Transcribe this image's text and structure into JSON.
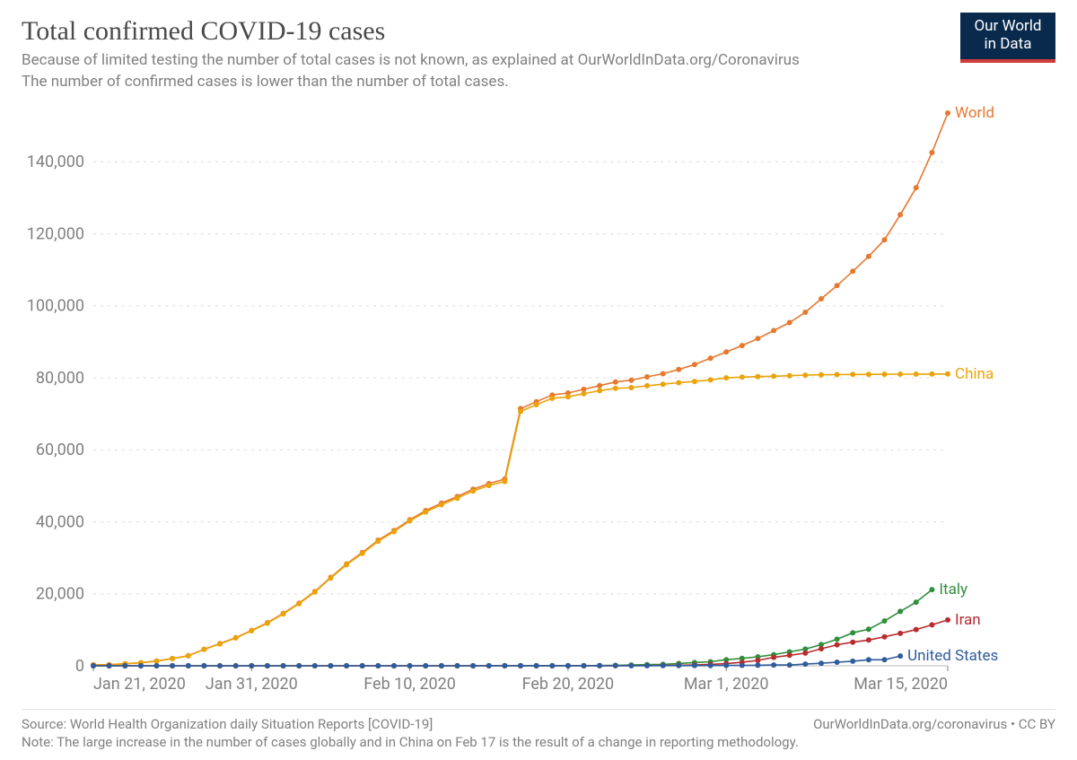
{
  "logo": {
    "line1": "Our World",
    "line2": "in Data"
  },
  "header": {
    "title": "Total confirmed COVID-19 cases",
    "subtitle_line1": "Because of limited testing the number of total cases is not known, as explained at OurWorldInData.org/Coronavirus",
    "subtitle_line2": " The number of confirmed cases is lower than the number of total cases."
  },
  "footer": {
    "source": "Source: World Health Organization daily Situation Reports [COVID-19]",
    "attrib": "OurWorldInData.org/coronavirus • CC BY",
    "note": "Note: The large increase in the number of cases globally and in China on Feb 17 is the result of a change in reporting methodology."
  },
  "chart": {
    "type": "line",
    "background_color": "#ffffff",
    "grid_color": "#dcdcdc",
    "axis_text_color": "#808080",
    "axis_fontsize": 18,
    "line_width": 1.6,
    "marker_radius": 3,
    "marker_style": "circle",
    "xlim": [
      0,
      54
    ],
    "ylim": [
      0,
      155000
    ],
    "y_ticks": [
      {
        "v": 0,
        "label": "0"
      },
      {
        "v": 20000,
        "label": "20,000"
      },
      {
        "v": 40000,
        "label": "40,000"
      },
      {
        "v": 60000,
        "label": "60,000"
      },
      {
        "v": 80000,
        "label": "80,000"
      },
      {
        "v": 100000,
        "label": "100,000"
      },
      {
        "v": 120000,
        "label": "120,000"
      },
      {
        "v": 140000,
        "label": "140,000"
      }
    ],
    "x_ticks": [
      {
        "v": 0,
        "label": "Jan 21, 2020"
      },
      {
        "v": 10,
        "label": "Jan 31, 2020"
      },
      {
        "v": 20,
        "label": "Feb 10, 2020"
      },
      {
        "v": 30,
        "label": "Feb 20, 2020"
      },
      {
        "v": 40,
        "label": "Mar 1, 2020"
      },
      {
        "v": 54,
        "label": "Mar 15, 2020"
      }
    ],
    "end_label_fontsize": 17,
    "series": [
      {
        "name": "World",
        "color": "#e6782f",
        "values": [
          282,
          314,
          581,
          846,
          1320,
          2014,
          2798,
          4596,
          6166,
          7818,
          9826,
          11953,
          14557,
          17391,
          20630,
          24554,
          28276,
          31481,
          34886,
          37558,
          40554,
          43103,
          45171,
          46997,
          49053,
          50580,
          51857,
          71429,
          73332,
          75204,
          75748,
          76769,
          77794,
          78811,
          79331,
          80239,
          81109,
          82294,
          83652,
          85403,
          87137,
          88948,
          90870,
          93091,
          95324,
          98192,
          101927,
          105586,
          109578,
          113702,
          118319,
          125260,
          132758,
          142534,
          153517
        ]
      },
      {
        "name": "China",
        "color": "#eaa30a",
        "values": [
          278,
          309,
          571,
          830,
          1297,
          1985,
          2761,
          4537,
          6087,
          7736,
          9720,
          11821,
          14411,
          17238,
          20471,
          24363,
          28060,
          31211,
          34598,
          37251,
          40235,
          42708,
          44730,
          46550,
          48548,
          50054,
          51174,
          70635,
          72528,
          74280,
          74675,
          75569,
          76392,
          77042,
          77262,
          77780,
          78191,
          78630,
          78961,
          79394,
          79968,
          80174,
          80304,
          80422,
          80565,
          80711,
          80813,
          80860,
          80904,
          80924,
          80955,
          80981,
          80991,
          81021,
          81048
        ]
      },
      {
        "name": "Italy",
        "color": "#2f8f3b",
        "values": [
          0,
          0,
          0,
          0,
          0,
          0,
          0,
          0,
          0,
          0,
          2,
          2,
          2,
          2,
          2,
          2,
          2,
          3,
          3,
          3,
          3,
          3,
          3,
          3,
          3,
          3,
          3,
          3,
          3,
          3,
          3,
          9,
          76,
          124,
          229,
          322,
          400,
          650,
          888,
          1128,
          1689,
          2036,
          2502,
          3089,
          3858,
          4636,
          5883,
          7375,
          9172,
          10149,
          12462,
          15113,
          17660,
          21157
        ]
      },
      {
        "name": "Iran",
        "color": "#b82c2f",
        "values": [
          0,
          0,
          0,
          0,
          0,
          0,
          0,
          0,
          0,
          0,
          0,
          0,
          0,
          0,
          0,
          0,
          0,
          0,
          0,
          0,
          0,
          0,
          0,
          0,
          0,
          0,
          0,
          0,
          0,
          0,
          2,
          5,
          18,
          28,
          43,
          61,
          95,
          139,
          245,
          388,
          593,
          978,
          1501,
          2336,
          2922,
          3513,
          4747,
          5823,
          6566,
          7161,
          8042,
          9000,
          10075,
          11364,
          12729
        ]
      },
      {
        "name": "United States",
        "color": "#2f5c9c",
        "values": [
          1,
          1,
          2,
          2,
          2,
          5,
          5,
          5,
          5,
          6,
          7,
          8,
          8,
          11,
          11,
          11,
          11,
          11,
          12,
          12,
          12,
          12,
          12,
          12,
          12,
          13,
          13,
          13,
          13,
          13,
          13,
          15,
          15,
          35,
          35,
          35,
          53,
          57,
          60,
          64,
          108,
          129,
          148,
          213,
          213,
          472,
          696,
          987,
          1264,
          1678,
          1678,
          2726
        ]
      }
    ]
  }
}
